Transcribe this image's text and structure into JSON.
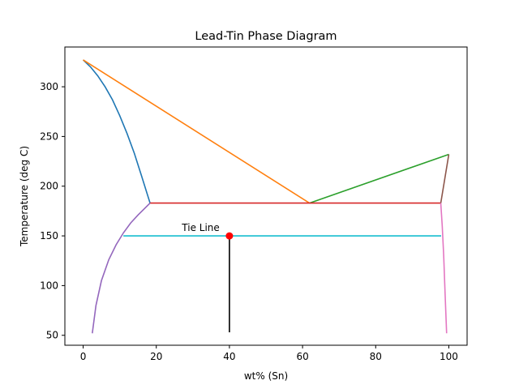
{
  "chart_data": {
    "type": "line",
    "title": "Lead-Tin Phase Diagram",
    "xlabel": "wt% (Sn)",
    "ylabel": "Temperature (deg C)",
    "xlim": [
      -5,
      105
    ],
    "ylim": [
      40,
      340
    ],
    "xticks": [
      0,
      20,
      40,
      60,
      80,
      100
    ],
    "yticks": [
      50,
      100,
      150,
      200,
      250,
      300
    ],
    "grid": false,
    "series": [
      {
        "color": "#1f77b4",
        "x": [
          0,
          2,
          4,
          6,
          8,
          10,
          12,
          14,
          16,
          18.3
        ],
        "y": [
          327,
          320,
          311,
          300,
          287,
          271,
          253,
          233,
          210,
          183
        ]
      },
      {
        "color": "#ff7f0e",
        "x": [
          0,
          61.9
        ],
        "y": [
          327,
          183
        ]
      },
      {
        "color": "#2ca02c",
        "x": [
          61.9,
          100
        ],
        "y": [
          183,
          232
        ]
      },
      {
        "color": "#d62728",
        "x": [
          18.3,
          97.8
        ],
        "y": [
          183,
          183
        ]
      },
      {
        "color": "#9467bd",
        "x": [
          2.5,
          3.5,
          5,
          7,
          9,
          11,
          13,
          15,
          18.3
        ],
        "y": [
          52,
          80,
          105,
          126,
          141,
          153,
          163,
          171,
          183
        ]
      },
      {
        "color": "#8c564b",
        "x": [
          97.8,
          100
        ],
        "y": [
          183,
          232
        ]
      },
      {
        "color": "#e377c2",
        "x": [
          97.8,
          98.2,
          98.6,
          99,
          99.4
        ],
        "y": [
          183,
          160,
          130,
          90,
          52
        ]
      },
      {
        "color": "#17becf",
        "x": [
          11,
          97.9
        ],
        "y": [
          150,
          150
        ]
      },
      {
        "color": "#000000",
        "x": [
          40,
          40
        ],
        "y": [
          150,
          53
        ]
      }
    ],
    "points": [
      {
        "x": 40,
        "y": 150,
        "color": "#ff0000"
      }
    ],
    "annotations": [
      {
        "text": "Tie Line",
        "x": 27,
        "y": 154
      }
    ]
  }
}
